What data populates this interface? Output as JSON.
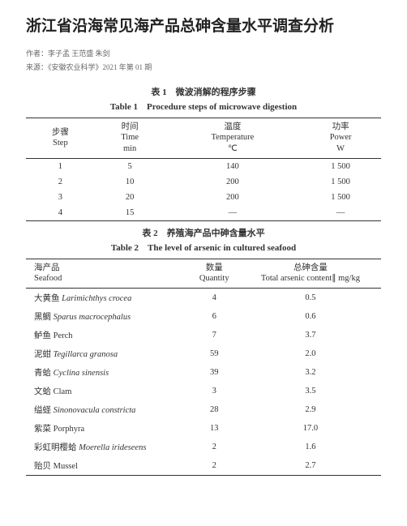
{
  "title": "浙江省沿海常见海产品总砷含量水平调查分析",
  "authors_label": "作者：李子孟 王范盛 朱剑",
  "source_label": "来源：《安徽农业科学》2021 年第 01 期",
  "table1": {
    "caption_cn": "表 1　微波消解的程序步骤",
    "caption_en": "Table 1　Procedure steps of microwave digestion",
    "headers": [
      {
        "cn": "步骤",
        "en": "Step"
      },
      {
        "cn": "时间",
        "en": "Time",
        "unit": "min"
      },
      {
        "cn": "温度",
        "en": "Temperature",
        "unit": "℃"
      },
      {
        "cn": "功率",
        "en": "Power",
        "unit": "W"
      }
    ],
    "rows": [
      [
        "1",
        "5",
        "140",
        "1 500"
      ],
      [
        "2",
        "10",
        "200",
        "1 500"
      ],
      [
        "3",
        "20",
        "200",
        "1 500"
      ],
      [
        "4",
        "15",
        "—",
        "—"
      ]
    ]
  },
  "table2": {
    "caption_cn": "表 2　养殖海产品中砷含量水平",
    "caption_en": "Table 2　The level of arsenic in cultured seafood",
    "headers": [
      {
        "cn": "海产品",
        "en": "Seafood"
      },
      {
        "cn": "数量",
        "en": "Quantity"
      },
      {
        "cn": "总砷含量",
        "en": "Total arsenic content∥ mg/kg"
      }
    ],
    "rows": [
      {
        "cn": "大黄鱼 ",
        "latin": "Larimichthys crocea",
        "qty": "4",
        "val": "0.5"
      },
      {
        "cn": "黑鲷 ",
        "latin": "Sparus macrocephalus",
        "qty": "6",
        "val": "0.6"
      },
      {
        "cn": "鲈鱼 Perch",
        "latin": "",
        "qty": "7",
        "val": "3.7"
      },
      {
        "cn": "泥蚶 ",
        "latin": "Tegillarca granosa",
        "qty": "59",
        "val": "2.0"
      },
      {
        "cn": "青蛤 ",
        "latin": "Cyclina sinensis",
        "qty": "39",
        "val": "3.2"
      },
      {
        "cn": "文蛤 Clam",
        "latin": "",
        "qty": "3",
        "val": "3.5"
      },
      {
        "cn": "缢蛏 ",
        "latin": "Sinonovacula constricta",
        "qty": "28",
        "val": "2.9"
      },
      {
        "cn": "紫菜 Porphyra",
        "latin": "",
        "qty": "13",
        "val": "17.0"
      },
      {
        "cn": "彩虹明樱蛤 ",
        "latin": "Moerella irideseens",
        "qty": "2",
        "val": "1.6"
      },
      {
        "cn": "贻贝 Mussel",
        "latin": "",
        "qty": "2",
        "val": "2.7"
      }
    ]
  }
}
